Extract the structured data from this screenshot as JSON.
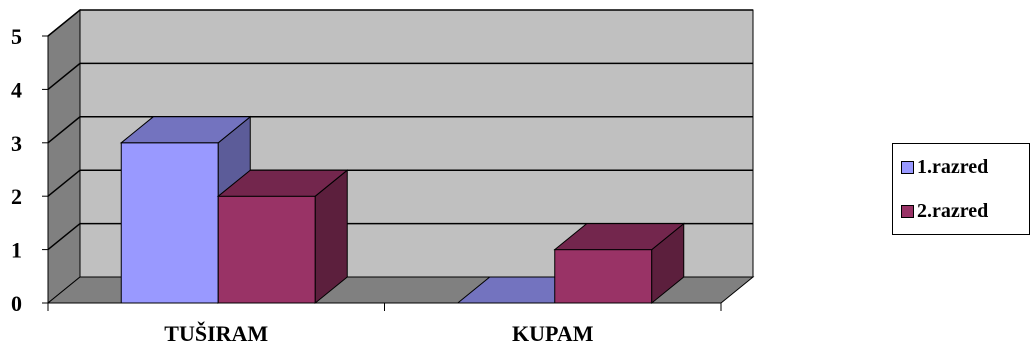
{
  "chart_data": {
    "type": "bar",
    "categories": [
      "TUŠIRAM",
      "KUPAM"
    ],
    "series": [
      {
        "name": "1.razred",
        "values": [
          3,
          0
        ],
        "color": "#9999FF"
      },
      {
        "name": "2.razred",
        "values": [
          2,
          1
        ],
        "color": "#993366"
      }
    ],
    "ylim": [
      0,
      5
    ],
    "yticks": [
      0,
      1,
      2,
      3,
      4,
      5
    ],
    "grid": true,
    "style": "3d-clustered",
    "wall_color": "#C0C0C0",
    "legend_position": "right"
  }
}
